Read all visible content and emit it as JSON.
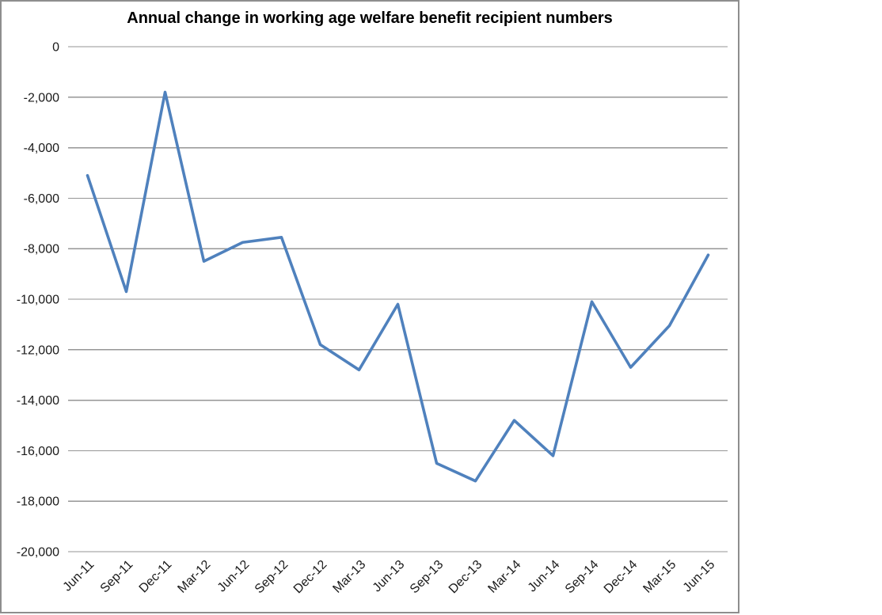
{
  "chart_data": {
    "type": "line",
    "title": "Annual change in working age welfare benefit recipient numbers",
    "categories": [
      "Jun-11",
      "Sep-11",
      "Dec-11",
      "Mar-12",
      "Jun-12",
      "Sep-12",
      "Dec-12",
      "Mar-13",
      "Jun-13",
      "Sep-13",
      "Dec-13",
      "Mar-14",
      "Jun-14",
      "Sep-14",
      "Dec-14",
      "Mar-15",
      "Jun-15"
    ],
    "series": [
      {
        "name": "Annual change in working age welfare benefit recipient numbers",
        "values": [
          -5100,
          -9700,
          -1800,
          -8500,
          -7750,
          -7550,
          -11800,
          -12800,
          -10200,
          -16500,
          -17200,
          -14800,
          -16200,
          -10100,
          -12700,
          -11050,
          -8250
        ]
      }
    ],
    "xlabel": "",
    "ylabel": "",
    "y_axis": {
      "min": -20000,
      "max": 0,
      "step": 2000,
      "tick_labels": [
        "0",
        "-2,000",
        "-4,000",
        "-6,000",
        "-8,000",
        "-10,000",
        "-12,000",
        "-14,000",
        "-16,000",
        "-18,000",
        "-20,000"
      ]
    },
    "grid": true,
    "legend_position": "none",
    "colors": {
      "line": "#4F81BD",
      "gridline": "#969696",
      "text": "#1a1a1a",
      "frame_border": "#8e8e8e",
      "background": "#ffffff"
    }
  }
}
